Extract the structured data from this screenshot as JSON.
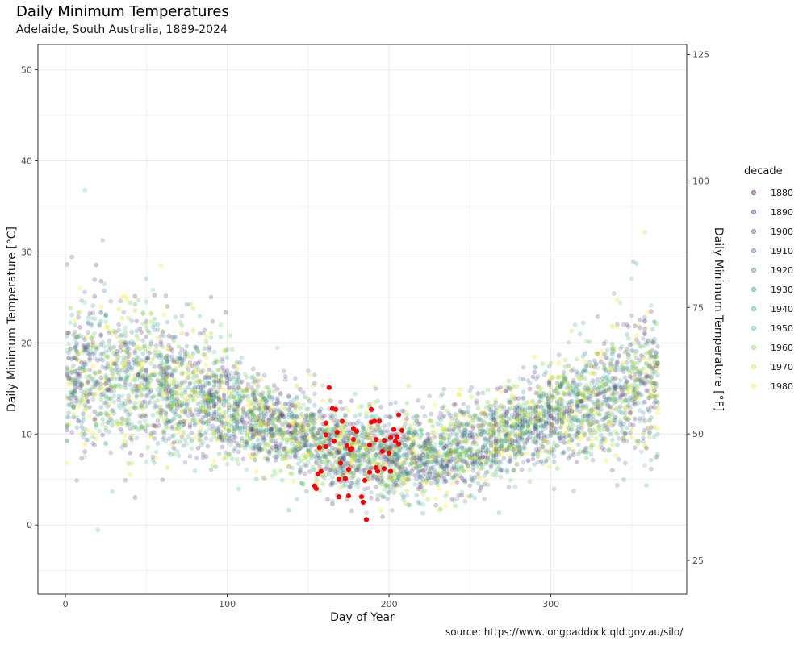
{
  "title": "Daily Minimum Temperatures",
  "subtitle": "Adelaide, South Australia, 1889-2024",
  "caption": "source: https://www.longpaddock.qld.gov.au/silo/",
  "chart_data": {
    "type": "scatter",
    "xlabel": "Day of Year",
    "ylabel": "Daily Minimum Temperature [°C]",
    "y2label": "Daily Minimum Temperature [°F]",
    "xlim": [
      -17,
      384
    ],
    "ylim": [
      -7.6,
      52.8
    ],
    "y2lim": [
      18.3,
      127.0
    ],
    "x_ticks": [
      0,
      100,
      200,
      300
    ],
    "y_ticks": [
      0,
      10,
      20,
      30,
      40,
      50
    ],
    "y2_ticks": [
      25,
      50,
      75,
      100,
      125
    ],
    "grid": true,
    "legend": {
      "title": "decade",
      "placement": "right",
      "entries": [
        {
          "label": "1880",
          "color": "#440154"
        },
        {
          "label": "1890",
          "color": "#482576"
        },
        {
          "label": "1900",
          "color": "#414487"
        },
        {
          "label": "1910",
          "color": "#35608D"
        },
        {
          "label": "1920",
          "color": "#2A788E"
        },
        {
          "label": "1930",
          "color": "#21908C"
        },
        {
          "label": "1940",
          "color": "#22A884"
        },
        {
          "label": "1950",
          "color": "#43BF71"
        },
        {
          "label": "1960",
          "color": "#7AD151"
        },
        {
          "label": "1970",
          "color": "#BBDF27"
        },
        {
          "label": "1980",
          "color": "#FDE725"
        }
      ]
    },
    "seasonal_model": {
      "mean_peak_day": 25,
      "mean_peak": 16.0,
      "mean_trough_day": 190,
      "mean_trough": 7.5,
      "spread": 3.2
    },
    "highlighted_series": {
      "color": "#FF0000",
      "points": [
        [
          163,
          15.1
        ],
        [
          165,
          12.8
        ],
        [
          167,
          12.7
        ],
        [
          189,
          12.7
        ],
        [
          206,
          12.1
        ],
        [
          171,
          11.4
        ],
        [
          161,
          11.2
        ],
        [
          191,
          11.4
        ],
        [
          194,
          11.4
        ],
        [
          189,
          11.3
        ],
        [
          178,
          10.6
        ],
        [
          180,
          10.3
        ],
        [
          203,
          10.5
        ],
        [
          208,
          10.4
        ],
        [
          168,
          10.2
        ],
        [
          161,
          9.9
        ],
        [
          201,
          9.6
        ],
        [
          205,
          9.7
        ],
        [
          192,
          9.4
        ],
        [
          197,
          9.3
        ],
        [
          178,
          9.4
        ],
        [
          166,
          9.2
        ],
        [
          204,
          9.2
        ],
        [
          206,
          8.9
        ],
        [
          188,
          8.8
        ],
        [
          174,
          8.7
        ],
        [
          157,
          8.5
        ],
        [
          161,
          8.6
        ],
        [
          177,
          8.4
        ],
        [
          176,
          8.3
        ],
        [
          196,
          8.1
        ],
        [
          200,
          7.9
        ],
        [
          170,
          6.8
        ],
        [
          175,
          6.1
        ],
        [
          192,
          6.3
        ],
        [
          197,
          6.2
        ],
        [
          193,
          5.9
        ],
        [
          201,
          5.9
        ],
        [
          188,
          5.8
        ],
        [
          158,
          5.9
        ],
        [
          156,
          5.6
        ],
        [
          173,
          5.1
        ],
        [
          185,
          4.9
        ],
        [
          169,
          5.0
        ],
        [
          154,
          4.3
        ],
        [
          155,
          4.0
        ],
        [
          175,
          3.2
        ],
        [
          169,
          3.1
        ],
        [
          183,
          3.1
        ],
        [
          184,
          2.5
        ],
        [
          186,
          0.6
        ]
      ]
    }
  }
}
